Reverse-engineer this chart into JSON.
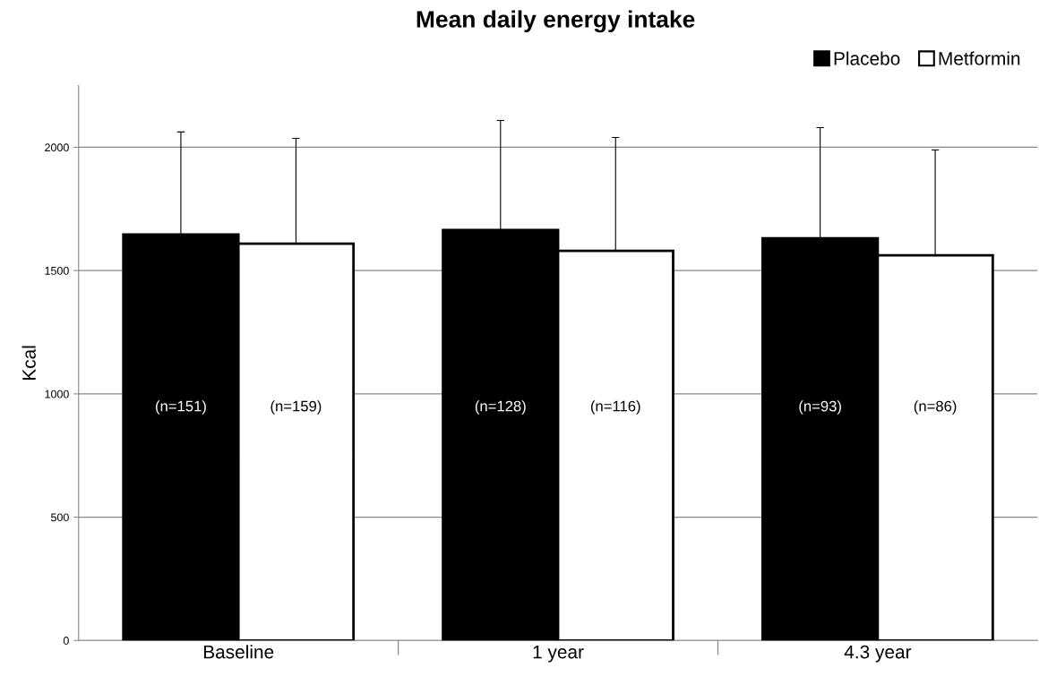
{
  "chart_data": {
    "type": "bar",
    "title": "Mean daily energy intake",
    "ylabel": "Kcal",
    "categories": [
      "Baseline",
      "1 year",
      "4.3 year"
    ],
    "series": [
      {
        "name": "Placebo",
        "color": "#000000",
        "values": [
          1646,
          1664,
          1631
        ],
        "errors": [
          416,
          445,
          449
        ]
      },
      {
        "name": "Metformin",
        "color": "#ffffff",
        "values": [
          1609,
          1580,
          1562
        ],
        "errors": [
          427,
          460,
          427
        ]
      }
    ],
    "annotations": [
      "(n=151)",
      "(n=159)",
      "(n=128)",
      "(n=116)",
      "(n=93)",
      "(n=86)"
    ],
    "ylim": [
      0,
      2250
    ],
    "yticks": [
      0,
      500,
      1000,
      1500,
      2000
    ],
    "grid": "y",
    "legend": "top right"
  }
}
